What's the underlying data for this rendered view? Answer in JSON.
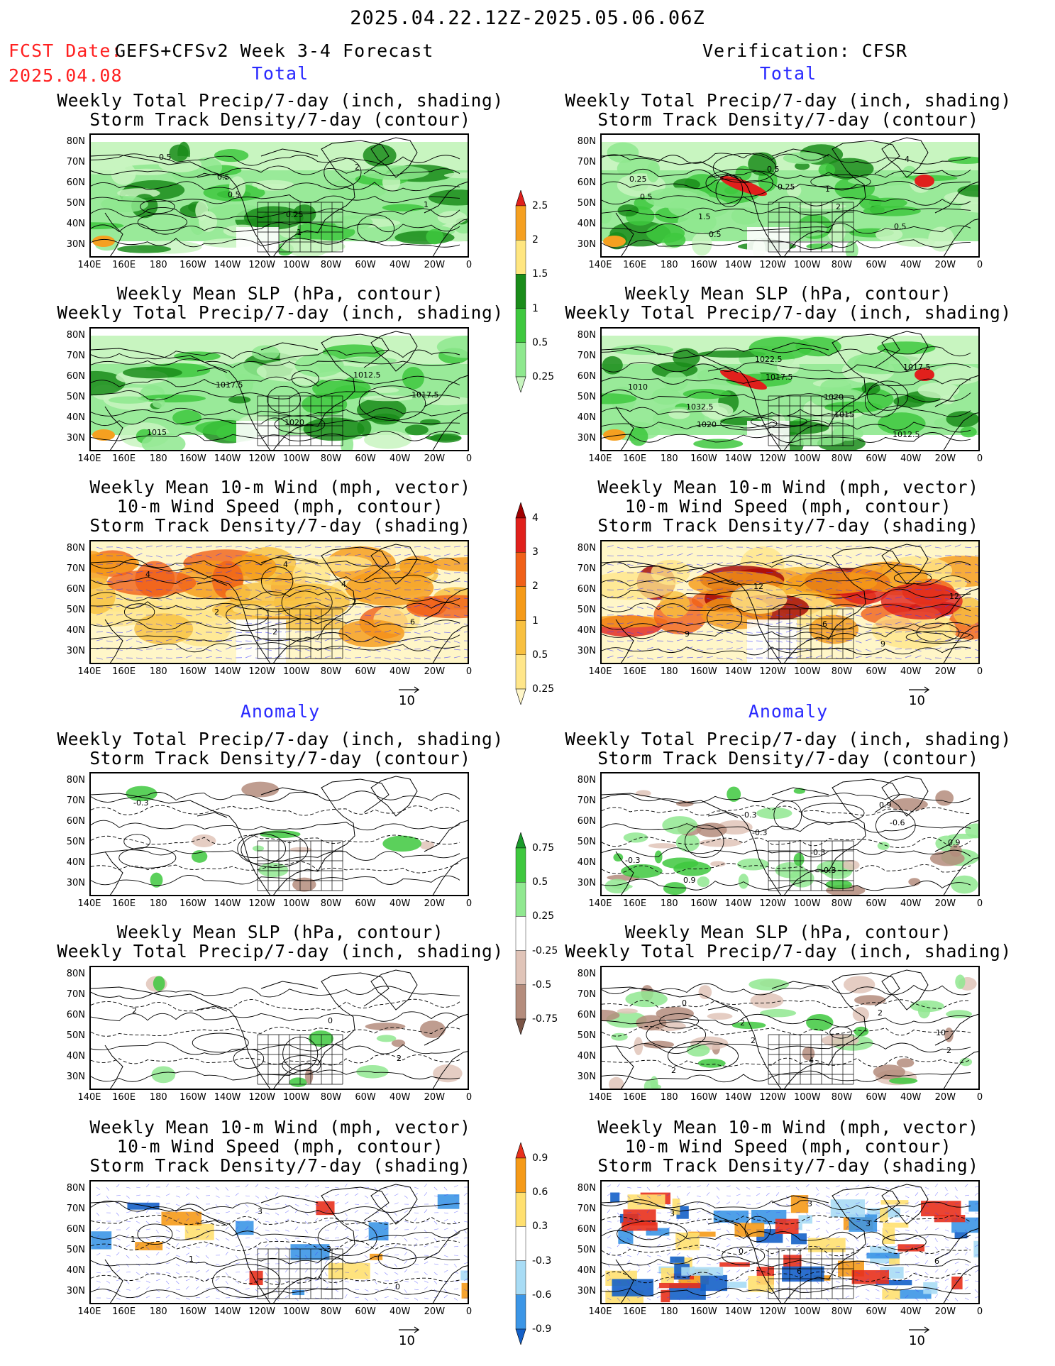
{
  "header": {
    "date_range": "2025.04.22.12Z-2025.05.06.06Z",
    "fcst_date_label": "FCST Date:",
    "fcst_date_value": "2025.04.08",
    "forecast_title": "GEFS+CFSv2 Week 3-4 Forecast",
    "verification_title": "Verification: CFSR",
    "total_label": "Total",
    "anomaly_label": "Anomaly"
  },
  "panel_titles": {
    "precip_storm": [
      "Weekly Total Precip/7-day (inch, shading)",
      "Storm Track Density/7-day (contour)"
    ],
    "slp_precip": [
      "Weekly Mean SLP (hPa, contour)",
      "Weekly Total Precip/7-day (inch, shading)"
    ],
    "wind_storm": [
      "Weekly Mean 10-m Wind (mph, vector)",
      "10-m Wind Speed (mph, contour)",
      "Storm Track Density/7-day (shading)"
    ]
  },
  "axes": {
    "lat_labels": [
      "80N",
      "70N",
      "60N",
      "50N",
      "40N",
      "30N"
    ],
    "lon_labels": [
      "140E",
      "160E",
      "180",
      "160W",
      "140W",
      "120W",
      "100W",
      "80W",
      "60W",
      "40W",
      "20W",
      "0"
    ]
  },
  "vector_reference": "10",
  "colorbars": {
    "precip_total": {
      "labels": [
        "2.5",
        "2",
        "1.5",
        "1",
        "0.5",
        "0.25"
      ],
      "colors": [
        "#e0201c",
        "#f5a020",
        "#ffe680",
        "#1a8c1a",
        "#3ec83e",
        "#8ee88e",
        "#c8f5c0"
      ]
    },
    "storm_total": {
      "labels": [
        "4",
        "3",
        "2",
        "1",
        "0.5",
        "0.25"
      ],
      "colors": [
        "#a00000",
        "#e0201c",
        "#f06018",
        "#f59a18",
        "#f8c040",
        "#ffe68a",
        "#fff6c8"
      ]
    },
    "precip_anom": {
      "labels": [
        "0.75",
        "0.5",
        "0.25",
        "-0.25",
        "-0.5",
        "-0.75"
      ],
      "colors": [
        "#1a9a2a",
        "#3ec83e",
        "#90e890",
        "#ffffff",
        "#e0c4b8",
        "#b48c7c",
        "#7a5446"
      ]
    },
    "storm_anom": {
      "labels": [
        "0.9",
        "0.6",
        "0.3",
        "-0.3",
        "-0.6",
        "-0.9"
      ],
      "colors": [
        "#e8301c",
        "#f59a18",
        "#ffe070",
        "#ffffff",
        "#a8dcf5",
        "#3c96e6",
        "#1460c8"
      ]
    }
  },
  "contour_labels": {
    "p1": [
      "0.5",
      "0.25",
      "2",
      "1",
      "0.5",
      "0.5",
      "1"
    ],
    "p2": [
      "1",
      "0.5",
      "0.25",
      "1.5",
      "0.5",
      "2",
      "4",
      "0.5",
      "0.5",
      "0.25"
    ],
    "p3": [
      "1017.5",
      "1015",
      "1017.5",
      "1020",
      "1012.5"
    ],
    "p4": [
      "1032.5",
      "1022.5",
      "1020",
      "1012.5",
      "1010",
      "1020",
      "1017.5",
      "1015",
      "1017.5"
    ],
    "p5": [
      "2",
      "4",
      "6",
      "4",
      "2",
      "4",
      "2"
    ],
    "p6": [
      "9",
      "12",
      "9",
      "12",
      "6"
    ],
    "p7": [
      "-0.3"
    ],
    "p8": [
      "-0.3",
      "-0.3",
      "0.9",
      "0.9",
      "0.9",
      "-0.3",
      "-0.3",
      "-0.6",
      "-0.3"
    ],
    "p9": [
      "0",
      "2",
      "2"
    ],
    "p10": [
      "10",
      "2",
      "2",
      "4",
      "2",
      "2",
      "0",
      "2"
    ],
    "p11": [
      "1",
      "3",
      "3",
      "0",
      "1"
    ],
    "p12": [
      "6",
      "3",
      "6",
      "3",
      "0",
      "3"
    ]
  }
}
